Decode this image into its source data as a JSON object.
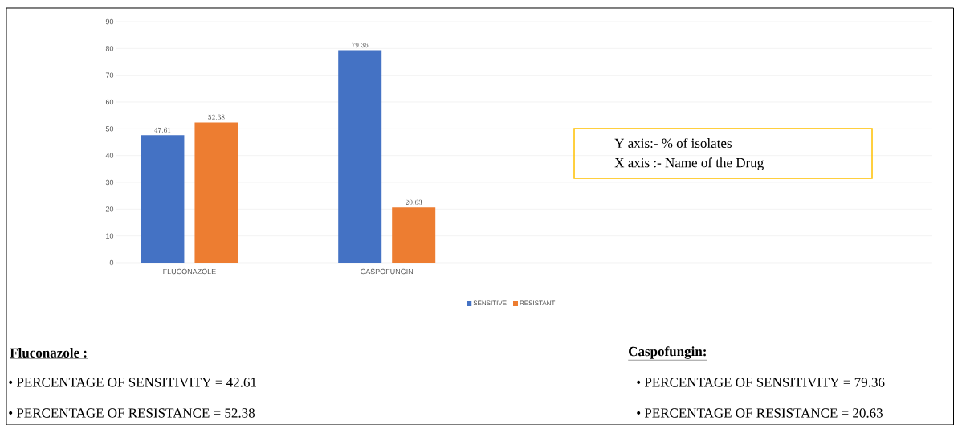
{
  "chart_data": {
    "type": "bar",
    "categories": [
      "FLUCONAZOLE",
      "CASPOFUNGIN"
    ],
    "series": [
      {
        "name": "SENSITIVE",
        "color": "#4472c4",
        "values": [
          47.61,
          79.36
        ]
      },
      {
        "name": "RESISTANT",
        "color": "#ed7d31",
        "values": [
          52.38,
          20.63
        ]
      }
    ],
    "ylim": [
      0,
      90
    ],
    "yticks": [
      0,
      10,
      20,
      30,
      40,
      50,
      60,
      70,
      80,
      90
    ],
    "grid": "y",
    "legend": "bottom",
    "data_labels": true,
    "annotations": [
      "Y axis:- % of isolates",
      "X axis :- Name of the Drug",
      "Fluconazole :",
      "•   PERCENTAGE OF SENSITIVITY = 42.61",
      "•   PERCENTAGE OF RESISTANCE = 52.38",
      "Caspofungin:",
      "•   PERCENTAGE OF SENSITIVITY = 79.36",
      "•   PERCENTAGE OF RESISTANCE = 20.63"
    ]
  }
}
